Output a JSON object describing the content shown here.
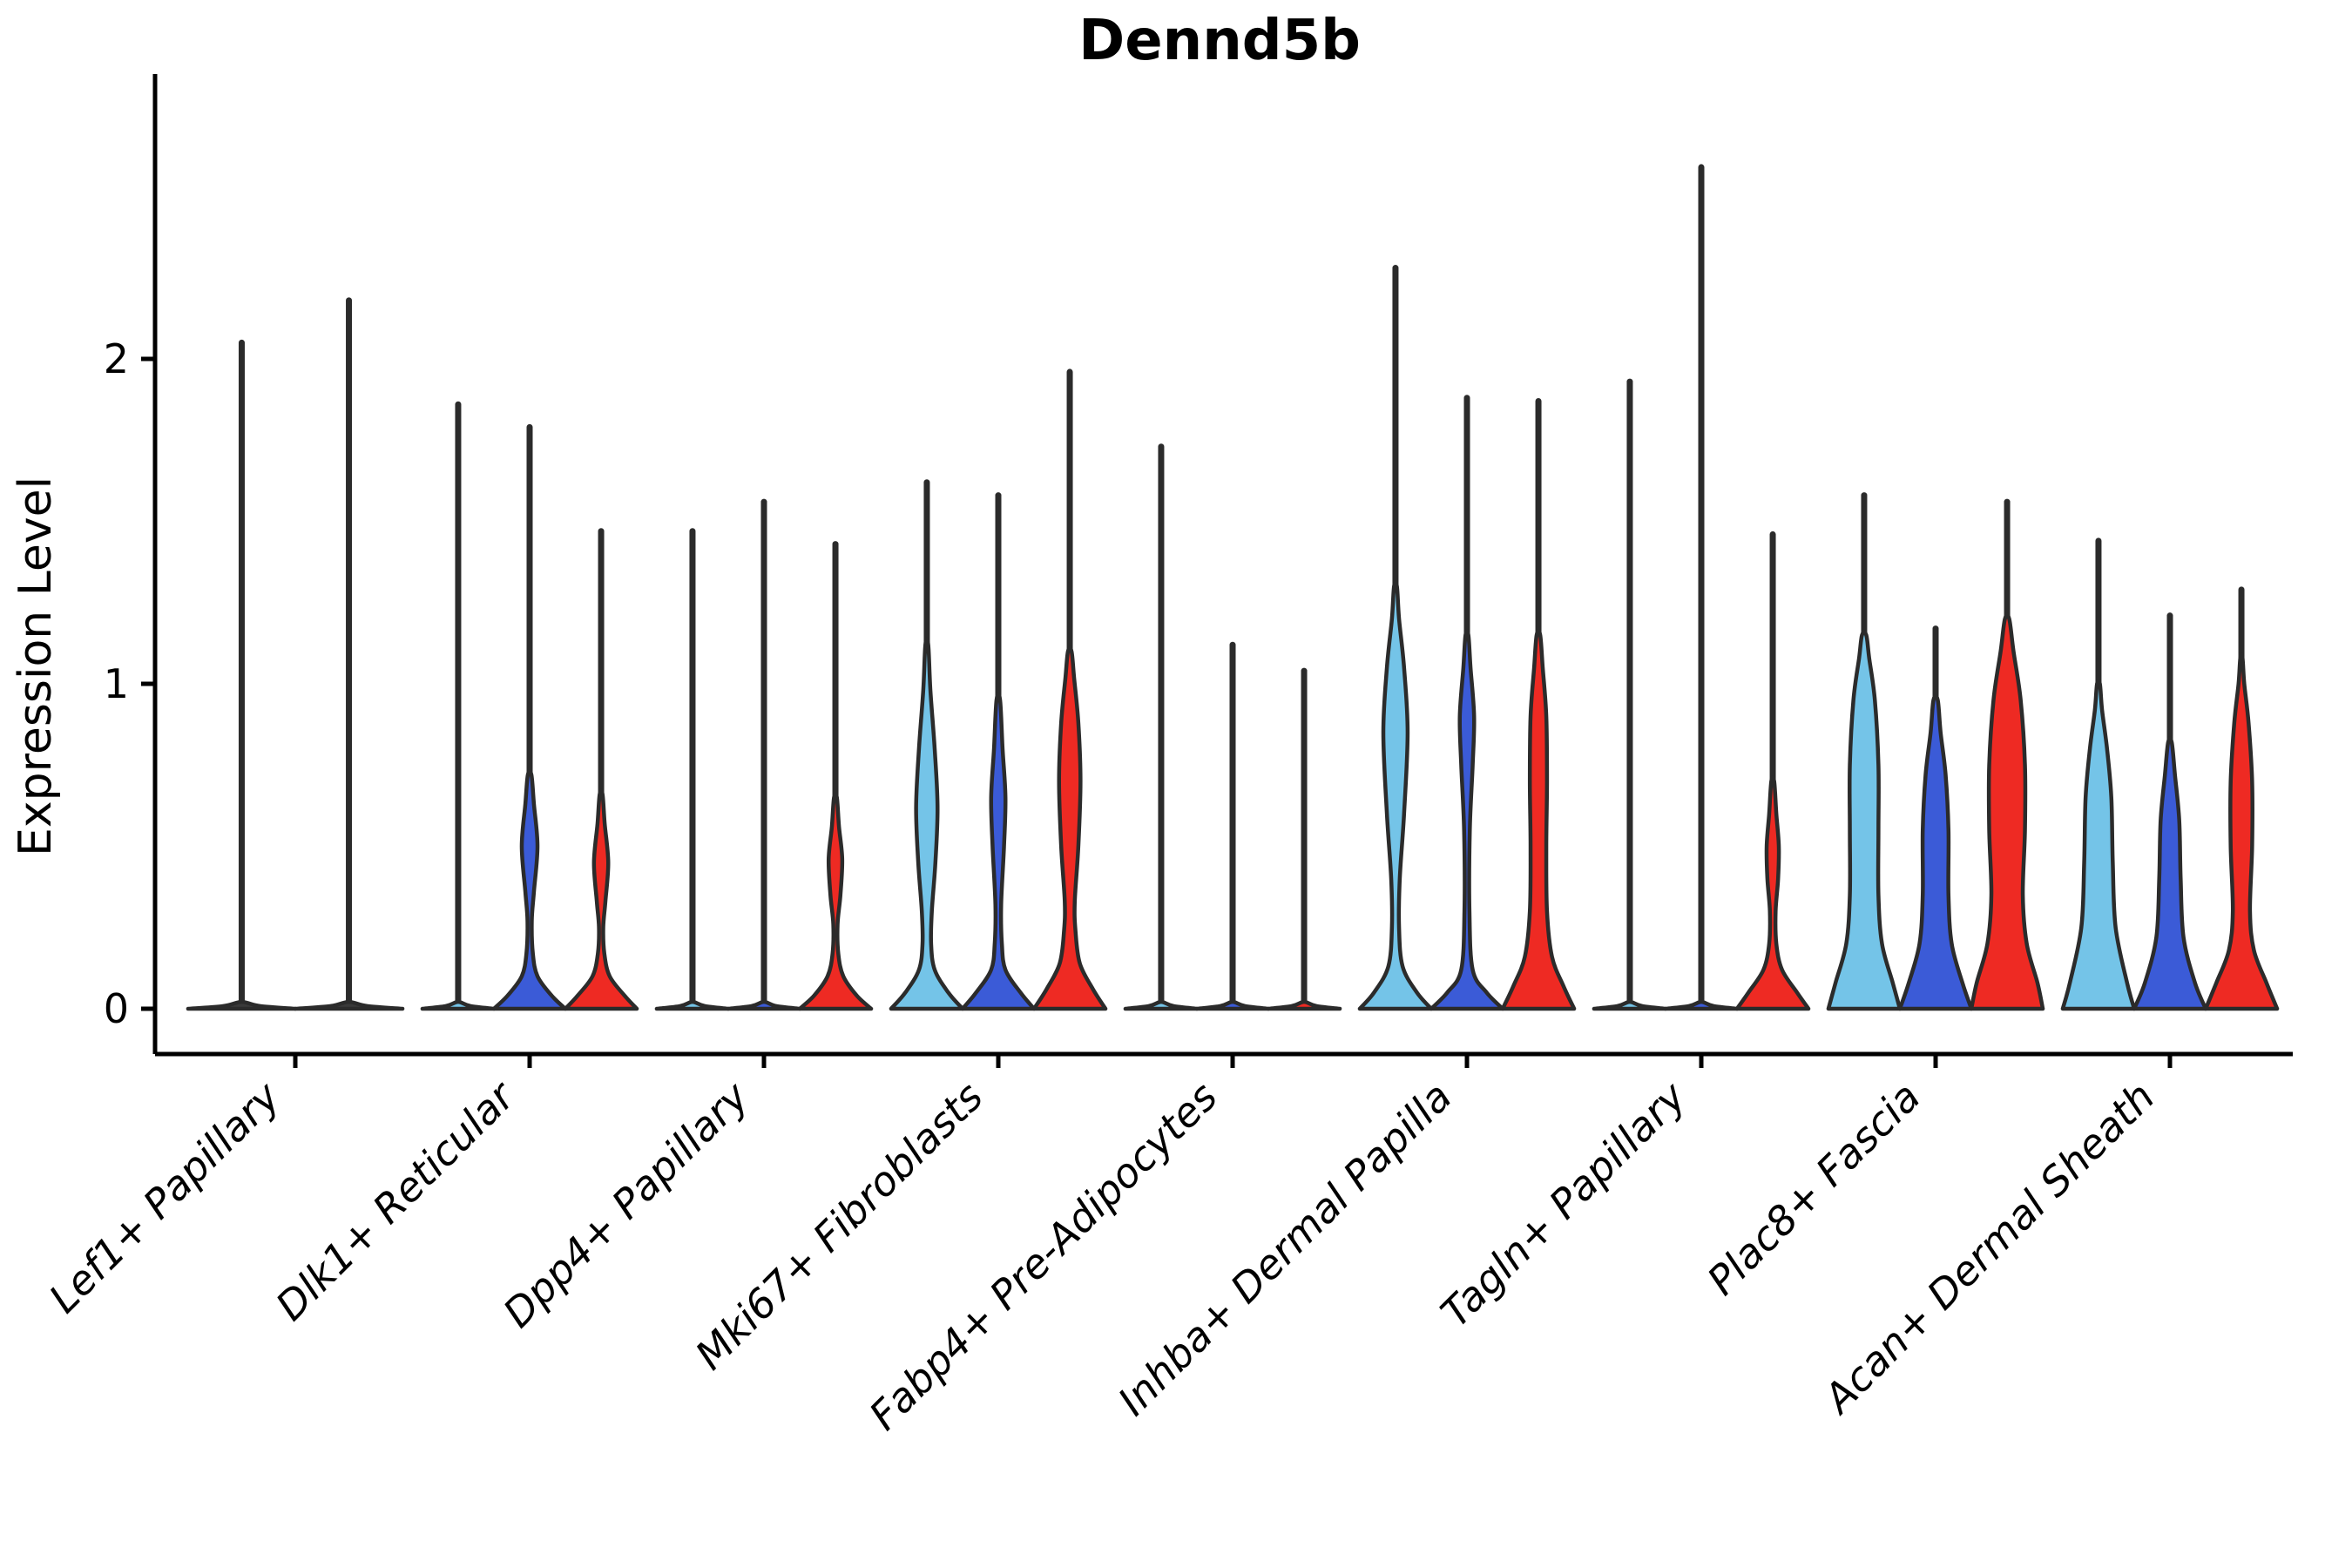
{
  "title": "Dennd5b",
  "y_axis": {
    "label": "Expression Level",
    "ticks": [
      "0",
      "1",
      "2"
    ],
    "tick_values": [
      0,
      1,
      2
    ],
    "range": [
      -0.14,
      2.88
    ]
  },
  "palette": {
    "lightblue": "#74C4E8",
    "darkblue": "#3B5BD7",
    "red": "#EE2A23",
    "outline": "#2B2B2B",
    "axis": "#000000",
    "background": "#FFFFFF"
  },
  "chart_data": {
    "type": "violin",
    "title": "Dennd5b",
    "xlabel": "",
    "ylabel": "Expression Level",
    "yticks": [
      0,
      1,
      2
    ],
    "ylim": [
      -0.14,
      2.88
    ],
    "grid": false,
    "legend": "none",
    "series_colors": [
      "lightblue",
      "darkblue",
      "red"
    ],
    "note": "Each category shows up to three split violins (lightblue/darkblue/red). 'max' is the top of the thin density spike in expression units; 'profile' is [expression_value, relative_half_width] pairs of the violin body; 'flat' means the distribution collapses to a disc at 0 with only a spike.",
    "groups": [
      {
        "label": "Lef1+ Papillary",
        "violins": [
          {
            "color": null,
            "max": 2.05,
            "profile": "flat"
          },
          {
            "color": null,
            "max": 2.18,
            "profile": "flat"
          }
        ]
      },
      {
        "label": "Dlk1+ Reticular",
        "violins": [
          {
            "color": "lightblue",
            "max": 1.86,
            "profile": "flat"
          },
          {
            "color": "darkblue",
            "max": 1.79,
            "profile": [
              [
                0,
                1
              ],
              [
                0.04,
                0.62
              ],
              [
                0.1,
                0.22
              ],
              [
                0.17,
                0.09
              ],
              [
                0.27,
                0.06
              ],
              [
                0.36,
                0.12
              ],
              [
                0.5,
                0.22
              ],
              [
                0.63,
                0.12
              ],
              [
                0.72,
                0.05
              ]
            ]
          },
          {
            "color": "red",
            "max": 1.47,
            "profile": [
              [
                0,
                1
              ],
              [
                0.04,
                0.66
              ],
              [
                0.1,
                0.24
              ],
              [
                0.17,
                0.09
              ],
              [
                0.25,
                0.06
              ],
              [
                0.33,
                0.12
              ],
              [
                0.45,
                0.2
              ],
              [
                0.57,
                0.1
              ],
              [
                0.66,
                0.04
              ]
            ]
          }
        ]
      },
      {
        "label": "Dpp4+ Papillary",
        "violins": [
          {
            "color": "lightblue",
            "max": 1.47,
            "profile": "flat"
          },
          {
            "color": "darkblue",
            "max": 1.56,
            "profile": "flat"
          },
          {
            "color": "red",
            "max": 1.43,
            "profile": [
              [
                0,
                1
              ],
              [
                0.04,
                0.6
              ],
              [
                0.1,
                0.22
              ],
              [
                0.17,
                0.08
              ],
              [
                0.26,
                0.06
              ],
              [
                0.35,
                0.14
              ],
              [
                0.46,
                0.19
              ],
              [
                0.56,
                0.1
              ],
              [
                0.65,
                0.04
              ]
            ]
          }
        ]
      },
      {
        "label": "Mki67+ Fibroblasts",
        "violins": [
          {
            "color": "lightblue",
            "max": 1.62,
            "profile": [
              [
                0,
                1
              ],
              [
                0.05,
                0.6
              ],
              [
                0.12,
                0.22
              ],
              [
                0.2,
                0.12
              ],
              [
                0.3,
                0.14
              ],
              [
                0.45,
                0.24
              ],
              [
                0.62,
                0.3
              ],
              [
                0.8,
                0.22
              ],
              [
                0.98,
                0.1
              ],
              [
                1.12,
                0.04
              ]
            ]
          },
          {
            "color": "darkblue",
            "max": 1.58,
            "profile": [
              [
                0,
                1
              ],
              [
                0.05,
                0.62
              ],
              [
                0.12,
                0.2
              ],
              [
                0.2,
                0.1
              ],
              [
                0.32,
                0.08
              ],
              [
                0.5,
                0.16
              ],
              [
                0.65,
                0.2
              ],
              [
                0.8,
                0.12
              ],
              [
                0.95,
                0.05
              ]
            ]
          },
          {
            "color": "red",
            "max": 1.96,
            "profile": [
              [
                0,
                1
              ],
              [
                0.06,
                0.65
              ],
              [
                0.14,
                0.28
              ],
              [
                0.24,
                0.16
              ],
              [
                0.33,
                0.14
              ],
              [
                0.5,
                0.24
              ],
              [
                0.7,
                0.3
              ],
              [
                0.88,
                0.24
              ],
              [
                1.02,
                0.12
              ],
              [
                1.1,
                0.05
              ]
            ]
          }
        ]
      },
      {
        "label": "Fabp4+ Pre-Adipocytes",
        "violins": [
          {
            "color": "lightblue",
            "max": 1.73,
            "profile": "flat"
          },
          {
            "color": "darkblue",
            "max": 1.12,
            "profile": "flat"
          },
          {
            "color": "red",
            "max": 1.04,
            "profile": "flat"
          }
        ]
      },
      {
        "label": "Inhba+ Dermal Papilla",
        "violins": [
          {
            "color": "lightblue",
            "max": 2.28,
            "profile": [
              [
                0,
                1
              ],
              [
                0.05,
                0.6
              ],
              [
                0.13,
                0.2
              ],
              [
                0.25,
                0.1
              ],
              [
                0.4,
                0.12
              ],
              [
                0.6,
                0.24
              ],
              [
                0.85,
                0.34
              ],
              [
                1.05,
                0.24
              ],
              [
                1.2,
                0.1
              ],
              [
                1.3,
                0.04
              ]
            ]
          },
          {
            "color": "darkblue",
            "max": 1.88,
            "profile": [
              [
                0,
                1
              ],
              [
                0.05,
                0.55
              ],
              [
                0.12,
                0.16
              ],
              [
                0.3,
                0.07
              ],
              [
                0.55,
                0.08
              ],
              [
                0.75,
                0.16
              ],
              [
                0.9,
                0.2
              ],
              [
                1.05,
                0.1
              ],
              [
                1.15,
                0.04
              ]
            ]
          },
          {
            "color": "red",
            "max": 1.87,
            "profile": [
              [
                0,
                1
              ],
              [
                0.07,
                0.7
              ],
              [
                0.16,
                0.38
              ],
              [
                0.3,
                0.24
              ],
              [
                0.5,
                0.22
              ],
              [
                0.7,
                0.24
              ],
              [
                0.9,
                0.22
              ],
              [
                1.05,
                0.12
              ],
              [
                1.15,
                0.05
              ]
            ]
          }
        ]
      },
      {
        "label": "Tagln+ Papillary",
        "violins": [
          {
            "color": "lightblue",
            "max": 1.93,
            "profile": "flat"
          },
          {
            "color": "darkblue",
            "max": 2.59,
            "profile": "flat"
          },
          {
            "color": "red",
            "max": 1.46,
            "profile": [
              [
                0,
                1
              ],
              [
                0.05,
                0.68
              ],
              [
                0.12,
                0.26
              ],
              [
                0.2,
                0.1
              ],
              [
                0.3,
                0.08
              ],
              [
                0.4,
                0.15
              ],
              [
                0.5,
                0.17
              ],
              [
                0.6,
                0.1
              ],
              [
                0.7,
                0.04
              ]
            ]
          }
        ]
      },
      {
        "label": "Plac8+ Fascia",
        "violins": [
          {
            "color": "lightblue",
            "max": 1.58,
            "profile": [
              [
                0,
                1
              ],
              [
                0.08,
                0.8
              ],
              [
                0.2,
                0.5
              ],
              [
                0.35,
                0.4
              ],
              [
                0.55,
                0.4
              ],
              [
                0.75,
                0.4
              ],
              [
                0.95,
                0.3
              ],
              [
                1.08,
                0.14
              ],
              [
                1.15,
                0.06
              ]
            ]
          },
          {
            "color": "darkblue",
            "max": 1.17,
            "profile": [
              [
                0,
                1
              ],
              [
                0.08,
                0.75
              ],
              [
                0.2,
                0.45
              ],
              [
                0.35,
                0.36
              ],
              [
                0.55,
                0.36
              ],
              [
                0.72,
                0.28
              ],
              [
                0.85,
                0.14
              ],
              [
                0.95,
                0.06
              ]
            ]
          },
          {
            "color": "red",
            "max": 1.56,
            "profile": [
              [
                0,
                1
              ],
              [
                0.08,
                0.85
              ],
              [
                0.2,
                0.55
              ],
              [
                0.35,
                0.44
              ],
              [
                0.55,
                0.5
              ],
              [
                0.75,
                0.5
              ],
              [
                0.95,
                0.38
              ],
              [
                1.1,
                0.18
              ],
              [
                1.2,
                0.06
              ]
            ]
          }
        ]
      },
      {
        "label": "Acan+ Dermal Sheath",
        "violins": [
          {
            "color": "lightblue",
            "max": 1.44,
            "profile": [
              [
                0,
                1
              ],
              [
                0.08,
                0.8
              ],
              [
                0.25,
                0.48
              ],
              [
                0.45,
                0.4
              ],
              [
                0.65,
                0.36
              ],
              [
                0.8,
                0.24
              ],
              [
                0.92,
                0.1
              ],
              [
                1.0,
                0.04
              ]
            ]
          },
          {
            "color": "darkblue",
            "max": 1.21,
            "profile": [
              [
                0,
                1
              ],
              [
                0.08,
                0.7
              ],
              [
                0.22,
                0.38
              ],
              [
                0.4,
                0.3
              ],
              [
                0.58,
                0.26
              ],
              [
                0.72,
                0.14
              ],
              [
                0.82,
                0.05
              ]
            ]
          },
          {
            "color": "red",
            "max": 1.29,
            "profile": [
              [
                0,
                1
              ],
              [
                0.08,
                0.7
              ],
              [
                0.18,
                0.35
              ],
              [
                0.3,
                0.24
              ],
              [
                0.5,
                0.3
              ],
              [
                0.7,
                0.3
              ],
              [
                0.88,
                0.2
              ],
              [
                1.0,
                0.08
              ],
              [
                1.08,
                0.03
              ]
            ]
          }
        ]
      }
    ]
  }
}
